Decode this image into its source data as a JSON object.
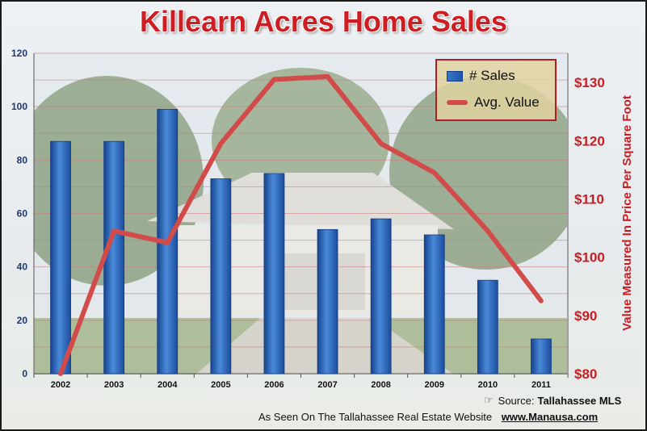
{
  "chart_data": {
    "type": "bar",
    "title": "Killearn Acres Home Sales",
    "categories": [
      "2002",
      "2003",
      "2004",
      "2005",
      "2006",
      "2007",
      "2008",
      "2009",
      "2010",
      "2011"
    ],
    "series": [
      {
        "name": "# Sales",
        "type": "bar",
        "axis": "left",
        "color": "#2a66bd",
        "values": [
          87,
          87,
          99,
          73,
          75,
          54,
          58,
          52,
          35,
          13
        ]
      },
      {
        "name": "Avg. Value",
        "type": "line",
        "axis": "right",
        "color": "#d24b4b",
        "values": [
          80,
          104.5,
          102.5,
          119.5,
          130.5,
          131,
          119.5,
          114.5,
          104.5,
          92.5
        ]
      }
    ],
    "y_left": {
      "min": 0,
      "max": 120,
      "ticks": [
        "0",
        "20",
        "40",
        "60",
        "80",
        "100",
        "120"
      ]
    },
    "y_right": {
      "min": 80,
      "max": 135,
      "ticks": [
        "$80",
        "$90",
        "$100",
        "$110",
        "$120",
        "$130"
      ],
      "label": "Value Measured In Price Per Square Foot"
    },
    "grid": true,
    "legend_position": "top-right"
  },
  "source": {
    "label": "Source:",
    "name": "Tallahassee MLS"
  },
  "footer": {
    "text": "As Seen On The Tallahassee Real Estate Website",
    "site": "www.Manausa.com"
  }
}
